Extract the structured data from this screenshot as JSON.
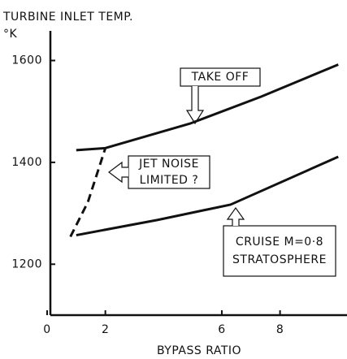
{
  "chart_data": {
    "type": "line",
    "title": "TURBINE INLET TEMP.",
    "y_unit": "°K",
    "x_label": "BYPASS RATIO",
    "xlim": [
      0,
      10.3
    ],
    "xticks": [
      0,
      2,
      6,
      8
    ],
    "ylim": [
      1100,
      1655
    ],
    "yticks": [
      1200,
      1400,
      1600
    ],
    "color": "#111111",
    "series": [
      {
        "x": [
          1.0,
          2.0,
          4.9,
          7.35,
          10.0
        ],
        "values": [
          1424,
          1428,
          1476,
          1529,
          1592
        ],
        "style": "solid"
      },
      {
        "x": [
          0.8,
          1.4,
          2.0
        ],
        "values": [
          1254,
          1322,
          1428
        ],
        "style": "dashed"
      },
      {
        "x": [
          1.0,
          3.8,
          6.3,
          10.0
        ],
        "values": [
          1257,
          1287,
          1317,
          1411
        ],
        "style": "solid"
      }
    ],
    "annotations": [
      {
        "lines": [
          "TAKE OFF"
        ]
      },
      {
        "lines": [
          "JET NOISE",
          "LIMITED ?"
        ]
      },
      {
        "lines": [
          "CRUISE M=0·8",
          "STRATOSPHERE"
        ]
      }
    ]
  }
}
